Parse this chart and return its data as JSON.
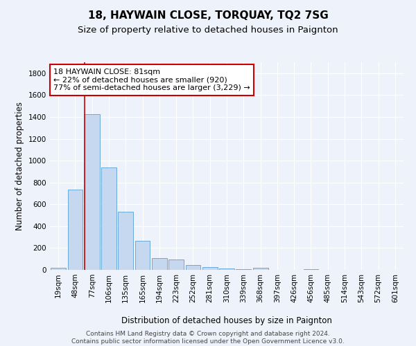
{
  "title": "18, HAYWAIN CLOSE, TORQUAY, TQ2 7SG",
  "subtitle": "Size of property relative to detached houses in Paignton",
  "xlabel": "Distribution of detached houses by size in Paignton",
  "ylabel": "Number of detached properties",
  "categories": [
    "19sqm",
    "48sqm",
    "77sqm",
    "106sqm",
    "135sqm",
    "165sqm",
    "194sqm",
    "223sqm",
    "252sqm",
    "281sqm",
    "310sqm",
    "339sqm",
    "368sqm",
    "397sqm",
    "426sqm",
    "456sqm",
    "485sqm",
    "514sqm",
    "543sqm",
    "572sqm",
    "601sqm"
  ],
  "values": [
    20,
    735,
    1425,
    935,
    535,
    265,
    110,
    95,
    45,
    25,
    15,
    5,
    20,
    2,
    0,
    5,
    0,
    0,
    0,
    0,
    0
  ],
  "bar_color": "#c5d8f0",
  "bar_edge_color": "#5a9fd4",
  "highlight_index": 2,
  "highlight_line_color": "#cc0000",
  "annotation_line1": "18 HAYWAIN CLOSE: 81sqm",
  "annotation_line2": "← 22% of detached houses are smaller (920)",
  "annotation_line3": "77% of semi-detached houses are larger (3,229) →",
  "annotation_box_color": "#ffffff",
  "annotation_box_edge_color": "#cc0000",
  "ylim": [
    0,
    1900
  ],
  "yticks": [
    0,
    200,
    400,
    600,
    800,
    1000,
    1200,
    1400,
    1600,
    1800
  ],
  "footer": "Contains HM Land Registry data © Crown copyright and database right 2024.\nContains public sector information licensed under the Open Government Licence v3.0.",
  "background_color": "#eef2fa",
  "grid_color": "#ffffff",
  "title_fontsize": 11,
  "subtitle_fontsize": 9.5,
  "label_fontsize": 8.5,
  "tick_fontsize": 7.5,
  "footer_fontsize": 6.5,
  "annotation_fontsize": 8
}
